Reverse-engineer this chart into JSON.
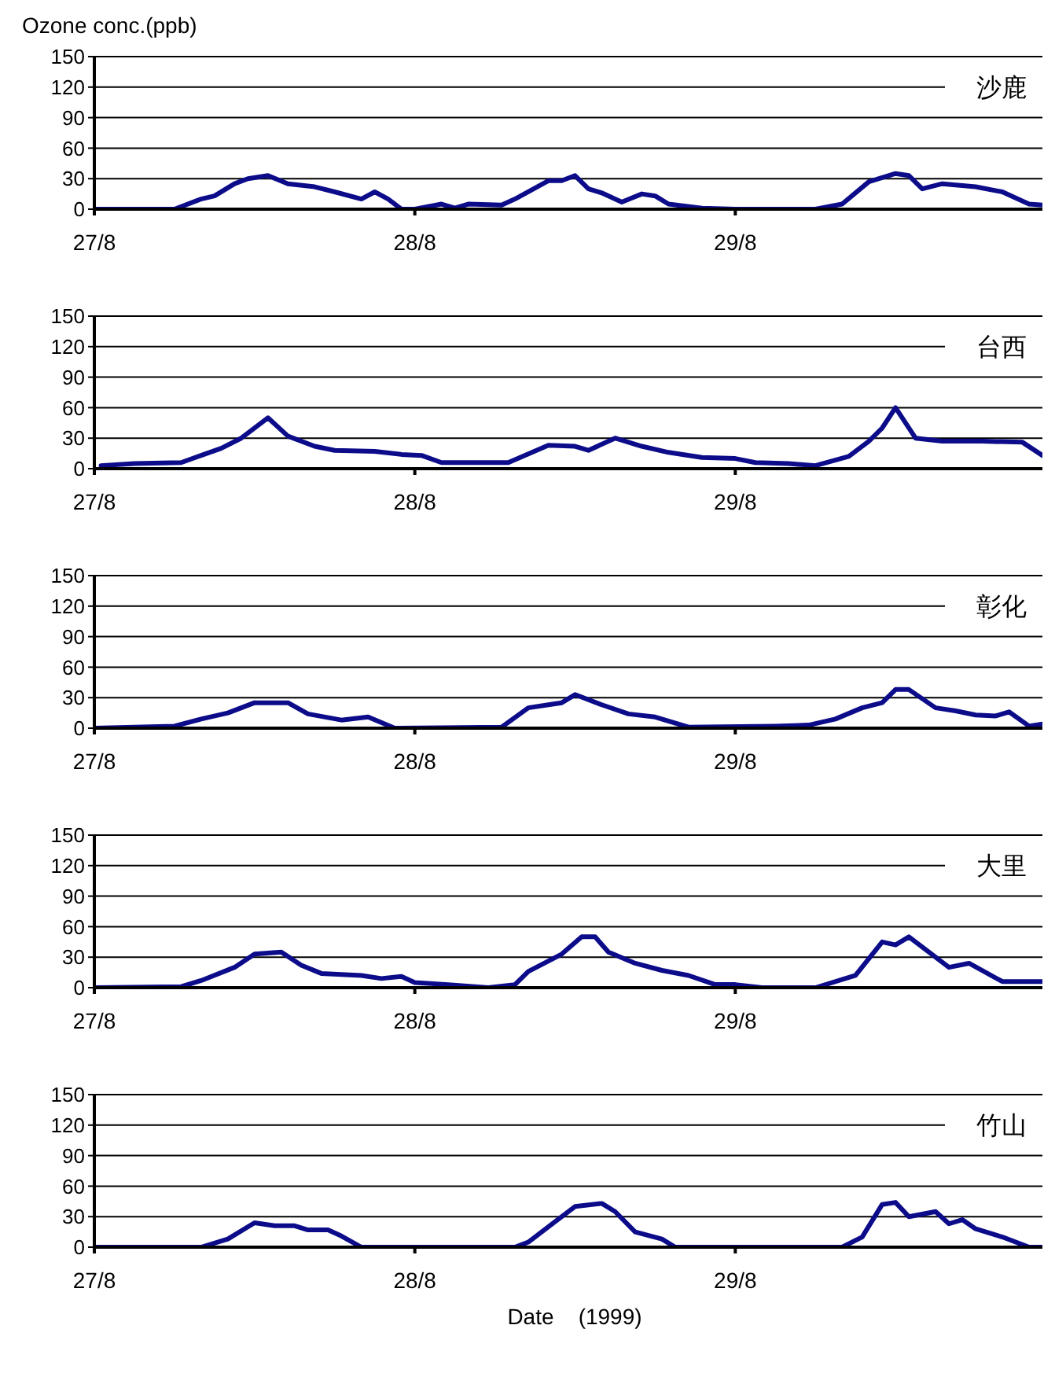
{
  "chart_data": [
    {
      "type": "line",
      "title": "沙鹿",
      "ylabel": "Ozone conc.(ppb)",
      "xlim": [
        "1999-08-27T00:00",
        "1999-08-29T23:00"
      ],
      "xticks": [
        {
          "value": "1999-08-27",
          "label": "27/8"
        },
        {
          "value": "1999-08-28",
          "label": "28/8"
        },
        {
          "value": "1999-08-29",
          "label": "29/8"
        }
      ],
      "ylim": [
        0,
        150
      ],
      "yticks": [
        0,
        30,
        60,
        90,
        120,
        150
      ],
      "grid": "y",
      "marker": "none",
      "line_style": "solid",
      "series": [
        {
          "color": "#0c0c8a",
          "x": [
            "1999-08-27T00:00",
            "1999-08-27T06:00",
            "1999-08-27T08:00",
            "1999-08-27T09:00",
            "1999-08-27T10:30",
            "1999-08-27T11:30",
            "1999-08-27T13:00",
            "1999-08-27T14:30",
            "1999-08-27T16:30",
            "1999-08-27T18:00",
            "1999-08-27T20:00",
            "1999-08-27T21:00",
            "1999-08-27T22:00",
            "1999-08-27T23:00",
            "1999-08-28T00:00",
            "1999-08-28T02:00",
            "1999-08-28T03:00",
            "1999-08-28T04:00",
            "1999-08-28T06:30",
            "1999-08-28T07:30",
            "1999-08-28T10:00",
            "1999-08-28T11:00",
            "1999-08-28T12:00",
            "1999-08-28T13:00",
            "1999-08-28T14:00",
            "1999-08-28T15:30",
            "1999-08-28T17:00",
            "1999-08-28T18:00",
            "1999-08-28T19:00",
            "1999-08-28T21:30",
            "1999-08-29T00:00",
            "1999-08-29T06:00",
            "1999-08-29T08:00",
            "1999-08-29T10:00",
            "1999-08-29T12:00",
            "1999-08-29T13:00",
            "1999-08-29T14:00",
            "1999-08-29T15:30",
            "1999-08-29T18:00",
            "1999-08-29T20:00",
            "1999-08-29T22:00",
            "1999-08-29T23:00"
          ],
          "values": [
            0,
            0,
            10,
            13,
            25,
            30,
            33,
            25,
            22,
            17,
            10,
            17,
            10,
            0,
            0,
            5,
            1,
            5,
            4,
            10,
            28,
            28,
            33,
            20,
            16,
            7,
            15,
            13,
            5,
            1,
            0,
            0,
            5,
            27,
            35,
            33,
            20,
            25,
            22,
            17,
            5,
            4
          ]
        }
      ]
    },
    {
      "type": "line",
      "title": "台西",
      "xlim": [
        "1999-08-27T00:00",
        "1999-08-29T23:00"
      ],
      "xticks": [
        {
          "value": "1999-08-27",
          "label": "27/8"
        },
        {
          "value": "1999-08-28",
          "label": "28/8"
        },
        {
          "value": "1999-08-29",
          "label": "29/8"
        }
      ],
      "ylim": [
        0,
        150
      ],
      "yticks": [
        0,
        30,
        60,
        90,
        120,
        150
      ],
      "grid": "y",
      "marker": "none",
      "line_style": "solid",
      "series": [
        {
          "color": "#0c0c8a",
          "x": [
            "1999-08-27T00:30",
            "1999-08-27T03:00",
            "1999-08-27T06:30",
            "1999-08-27T08:00",
            "1999-08-27T09:30",
            "1999-08-27T11:00",
            "1999-08-27T13:00",
            "1999-08-27T14:30",
            "1999-08-27T16:30",
            "1999-08-27T18:00",
            "1999-08-27T21:00",
            "1999-08-27T23:00",
            "1999-08-28T00:30",
            "1999-08-28T02:00",
            "1999-08-28T07:00",
            "1999-08-28T10:00",
            "1999-08-28T12:00",
            "1999-08-28T13:00",
            "1999-08-28T15:00",
            "1999-08-28T17:00",
            "1999-08-28T19:00",
            "1999-08-28T21:30",
            "1999-08-29T00:00",
            "1999-08-29T01:30",
            "1999-08-29T04:00",
            "1999-08-29T06:00",
            "1999-08-29T08:30",
            "1999-08-29T10:00",
            "1999-08-29T11:00",
            "1999-08-29T12:00",
            "1999-08-29T13:30",
            "1999-08-29T15:30",
            "1999-08-29T18:30",
            "1999-08-29T21:30",
            "1999-08-29T23:00"
          ],
          "values": [
            3,
            5,
            6,
            13,
            20,
            30,
            50,
            32,
            22,
            18,
            17,
            14,
            13,
            6,
            6,
            23,
            22,
            18,
            30,
            22,
            16,
            11,
            10,
            6,
            5,
            3,
            12,
            27,
            40,
            60,
            30,
            27,
            27,
            26,
            13
          ]
        }
      ]
    },
    {
      "type": "line",
      "title": "彰化",
      "xlim": [
        "1999-08-27T00:00",
        "1999-08-29T23:00"
      ],
      "xticks": [
        {
          "value": "1999-08-27",
          "label": "27/8"
        },
        {
          "value": "1999-08-28",
          "label": "28/8"
        },
        {
          "value": "1999-08-29",
          "label": "29/8"
        }
      ],
      "ylim": [
        0,
        150
      ],
      "yticks": [
        0,
        30,
        60,
        90,
        120,
        150
      ],
      "grid": "y",
      "marker": "none",
      "line_style": "solid",
      "series": [
        {
          "color": "#0c0c8a",
          "x": [
            "1999-08-27T00:00",
            "1999-08-27T03:00",
            "1999-08-27T06:00",
            "1999-08-27T08:00",
            "1999-08-27T10:00",
            "1999-08-27T12:00",
            "1999-08-27T14:30",
            "1999-08-27T16:00",
            "1999-08-27T18:30",
            "1999-08-27T20:30",
            "1999-08-27T22:30",
            "1999-08-28T06:30",
            "1999-08-28T08:30",
            "1999-08-28T10:00",
            "1999-08-28T11:00",
            "1999-08-28T12:00",
            "1999-08-28T14:00",
            "1999-08-28T16:00",
            "1999-08-28T18:00",
            "1999-08-28T20:30",
            "1999-08-29T03:00",
            "1999-08-29T05:30",
            "1999-08-29T07:30",
            "1999-08-29T09:30",
            "1999-08-29T11:00",
            "1999-08-29T12:00",
            "1999-08-29T13:00",
            "1999-08-29T15:00",
            "1999-08-29T16:30",
            "1999-08-29T18:00",
            "1999-08-29T19:30",
            "1999-08-29T20:30",
            "1999-08-29T22:00",
            "1999-08-29T23:00"
          ],
          "values": [
            0,
            1,
            2,
            9,
            15,
            25,
            25,
            14,
            8,
            11,
            0,
            1,
            20,
            23,
            25,
            33,
            23,
            14,
            11,
            1,
            2,
            3,
            9,
            20,
            25,
            38,
            38,
            20,
            17,
            13,
            12,
            16,
            2,
            4
          ]
        }
      ]
    },
    {
      "type": "line",
      "title": "大里",
      "xlim": [
        "1999-08-27T00:00",
        "1999-08-29T23:00"
      ],
      "xticks": [
        {
          "value": "1999-08-27",
          "label": "27/8"
        },
        {
          "value": "1999-08-28",
          "label": "28/8"
        },
        {
          "value": "1999-08-29",
          "label": "29/8"
        }
      ],
      "ylim": [
        0,
        150
      ],
      "yticks": [
        0,
        30,
        60,
        90,
        120,
        150
      ],
      "grid": "y",
      "marker": "none",
      "line_style": "solid",
      "series": [
        {
          "color": "#0c0c8a",
          "x": [
            "1999-08-27T00:00",
            "1999-08-27T06:30",
            "1999-08-27T08:00",
            "1999-08-27T10:30",
            "1999-08-27T12:00",
            "1999-08-27T14:00",
            "1999-08-27T15:30",
            "1999-08-27T17:00",
            "1999-08-27T20:00",
            "1999-08-27T21:30",
            "1999-08-27T23:00",
            "1999-08-28T00:00",
            "1999-08-28T02:30",
            "1999-08-28T05:30",
            "1999-08-28T07:30",
            "1999-08-28T08:30",
            "1999-08-28T11:00",
            "1999-08-28T12:30",
            "1999-08-28T13:30",
            "1999-08-28T14:30",
            "1999-08-28T16:30",
            "1999-08-28T18:30",
            "1999-08-28T20:30",
            "1999-08-28T22:30",
            "1999-08-29T00:00",
            "1999-08-29T02:00",
            "1999-08-29T06:00",
            "1999-08-29T09:00",
            "1999-08-29T11:00",
            "1999-08-29T12:00",
            "1999-08-29T13:00",
            "1999-08-29T16:00",
            "1999-08-29T17:30",
            "1999-08-29T20:00",
            "1999-08-29T23:00"
          ],
          "values": [
            0,
            1,
            7,
            20,
            33,
            35,
            22,
            14,
            12,
            9,
            11,
            5,
            3,
            0,
            3,
            16,
            33,
            50,
            50,
            35,
            24,
            17,
            12,
            3,
            3,
            0,
            0,
            12,
            45,
            42,
            50,
            20,
            24,
            6,
            6
          ]
        }
      ]
    },
    {
      "type": "line",
      "title": "竹山",
      "xlabel": "Date    (1999)",
      "xlim": [
        "1999-08-27T00:00",
        "1999-08-29T23:00"
      ],
      "xticks": [
        {
          "value": "1999-08-27",
          "label": "27/8"
        },
        {
          "value": "1999-08-28",
          "label": "28/8"
        },
        {
          "value": "1999-08-29",
          "label": "29/8"
        }
      ],
      "ylim": [
        0,
        150
      ],
      "yticks": [
        0,
        30,
        60,
        90,
        120,
        150
      ],
      "grid": "y",
      "marker": "none",
      "line_style": "solid",
      "series": [
        {
          "color": "#0c0c8a",
          "x": [
            "1999-08-27T00:00",
            "1999-08-27T08:00",
            "1999-08-27T10:00",
            "1999-08-27T12:00",
            "1999-08-27T13:30",
            "1999-08-27T15:00",
            "1999-08-27T16:00",
            "1999-08-27T17:30",
            "1999-08-27T18:30",
            "1999-08-27T20:00",
            "1999-08-28T07:30",
            "1999-08-28T08:30",
            "1999-08-28T10:30",
            "1999-08-28T12:00",
            "1999-08-28T14:00",
            "1999-08-28T15:00",
            "1999-08-28T16:30",
            "1999-08-28T18:30",
            "1999-08-28T19:30",
            "1999-08-29T08:00",
            "1999-08-29T09:30",
            "1999-08-29T11:00",
            "1999-08-29T12:00",
            "1999-08-29T13:00",
            "1999-08-29T15:00",
            "1999-08-29T16:00",
            "1999-08-29T17:00",
            "1999-08-29T18:00",
            "1999-08-29T20:00",
            "1999-08-29T22:00",
            "1999-08-29T23:00"
          ],
          "values": [
            0,
            0,
            8,
            24,
            21,
            21,
            17,
            17,
            11,
            0,
            0,
            5,
            25,
            40,
            43,
            35,
            15,
            8,
            0,
            0,
            10,
            42,
            44,
            30,
            35,
            23,
            27,
            18,
            10,
            0,
            0
          ]
        }
      ]
    }
  ]
}
